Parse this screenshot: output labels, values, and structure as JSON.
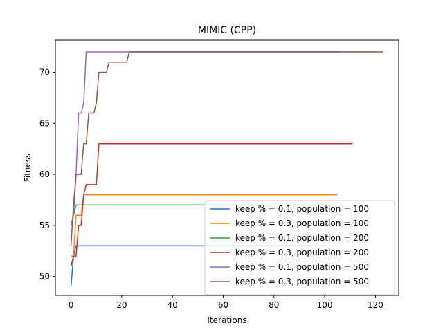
{
  "chart_data": {
    "type": "line",
    "title": "MIMIC (CPP)",
    "xlabel": "Iterations",
    "ylabel": "Fitness",
    "xlim": [
      -6.15,
      129.15
    ],
    "ylim": [
      48.15,
      73.15
    ],
    "xticks": [
      0,
      20,
      40,
      60,
      80,
      100,
      120
    ],
    "yticks": [
      50,
      55,
      60,
      65,
      70
    ],
    "grid": false,
    "legend_position": "lower-right",
    "series": [
      {
        "name": "keep % = 0.1, population = 100",
        "color": "#1f77b4",
        "points": [
          [
            0,
            49
          ],
          [
            1,
            52
          ],
          [
            2,
            53
          ],
          [
            100,
            53
          ]
        ]
      },
      {
        "name": "keep % = 0.3, population = 100",
        "color": "#ff7f0e",
        "points": [
          [
            0,
            52
          ],
          [
            1,
            52
          ],
          [
            2,
            56
          ],
          [
            4,
            56
          ],
          [
            5,
            58
          ],
          [
            105,
            58
          ]
        ]
      },
      {
        "name": "keep % = 0.1, population = 200",
        "color": "#2ca02c",
        "points": [
          [
            0,
            55
          ],
          [
            1,
            56
          ],
          [
            2,
            57
          ],
          [
            5,
            57
          ],
          [
            6,
            57
          ],
          [
            102,
            57
          ]
        ]
      },
      {
        "name": "keep % = 0.3, population = 200",
        "color": "#d62728",
        "points": [
          [
            0,
            51
          ],
          [
            1,
            52
          ],
          [
            2,
            52
          ],
          [
            3,
            55
          ],
          [
            4,
            55
          ],
          [
            5,
            58
          ],
          [
            6,
            59
          ],
          [
            10,
            59
          ],
          [
            11,
            63
          ],
          [
            111,
            63
          ]
        ]
      },
      {
        "name": "keep % = 0.1, population = 500",
        "color": "#9467bd",
        "points": [
          [
            0,
            55
          ],
          [
            1,
            56
          ],
          [
            2,
            60
          ],
          [
            3,
            66
          ],
          [
            4,
            66
          ],
          [
            5,
            67
          ],
          [
            6,
            72
          ],
          [
            106,
            72
          ]
        ]
      },
      {
        "name": "keep % = 0.3, population = 500",
        "color": "#8c564b",
        "points": [
          [
            0,
            53
          ],
          [
            1,
            57
          ],
          [
            2,
            60
          ],
          [
            4,
            60
          ],
          [
            5,
            63
          ],
          [
            6,
            63
          ],
          [
            7,
            66
          ],
          [
            9,
            66
          ],
          [
            10,
            67
          ],
          [
            11,
            70
          ],
          [
            14,
            70
          ],
          [
            15,
            71
          ],
          [
            22,
            71
          ],
          [
            23,
            72
          ],
          [
            123,
            72
          ]
        ]
      }
    ]
  }
}
